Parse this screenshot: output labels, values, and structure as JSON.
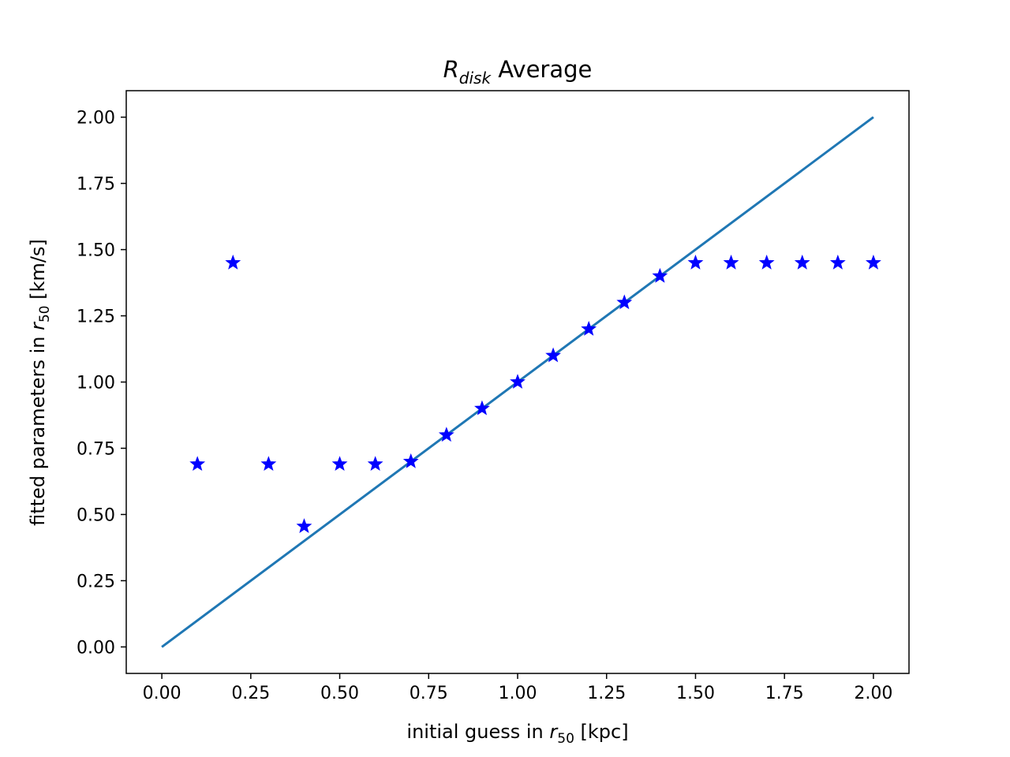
{
  "chart_data": {
    "type": "scatter",
    "title": {
      "symbol": "R",
      "symbol_sub": "disk",
      "rest": " Average"
    },
    "xlabel": {
      "prefix": "initial guess in ",
      "symbol": "r",
      "symbol_sub": "50",
      "suffix": " [kpc]"
    },
    "ylabel": {
      "prefix": "fitted parameters in ",
      "symbol": "r",
      "symbol_sub": "50",
      "suffix": " [km/s]"
    },
    "xlim": [
      -0.1,
      2.1
    ],
    "ylim": [
      -0.1,
      2.1
    ],
    "xticks": [
      "0.00",
      "0.25",
      "0.50",
      "0.75",
      "1.00",
      "1.25",
      "1.50",
      "1.75",
      "2.00"
    ],
    "yticks": [
      "0.00",
      "0.25",
      "0.50",
      "0.75",
      "1.00",
      "1.25",
      "1.50",
      "1.75",
      "2.00"
    ],
    "grid": false,
    "series": [
      {
        "kind": "scatter",
        "marker": "star",
        "color": "#0000ff",
        "x": [
          0.1,
          0.2,
          0.3,
          0.4,
          0.5,
          0.6,
          0.7,
          0.8,
          0.9,
          1.0,
          1.1,
          1.2,
          1.3,
          1.4,
          1.5,
          1.6,
          1.7,
          1.8,
          1.9,
          2.0
        ],
        "y": [
          0.69,
          1.45,
          0.69,
          0.455,
          0.69,
          0.69,
          0.7,
          0.8,
          0.9,
          1.0,
          1.1,
          1.2,
          1.3,
          1.4,
          1.45,
          1.45,
          1.45,
          1.45,
          1.45,
          1.45
        ]
      },
      {
        "kind": "line",
        "color": "#1f77b4",
        "x": [
          0.0,
          2.0
        ],
        "y": [
          0.0,
          2.0
        ]
      }
    ]
  }
}
